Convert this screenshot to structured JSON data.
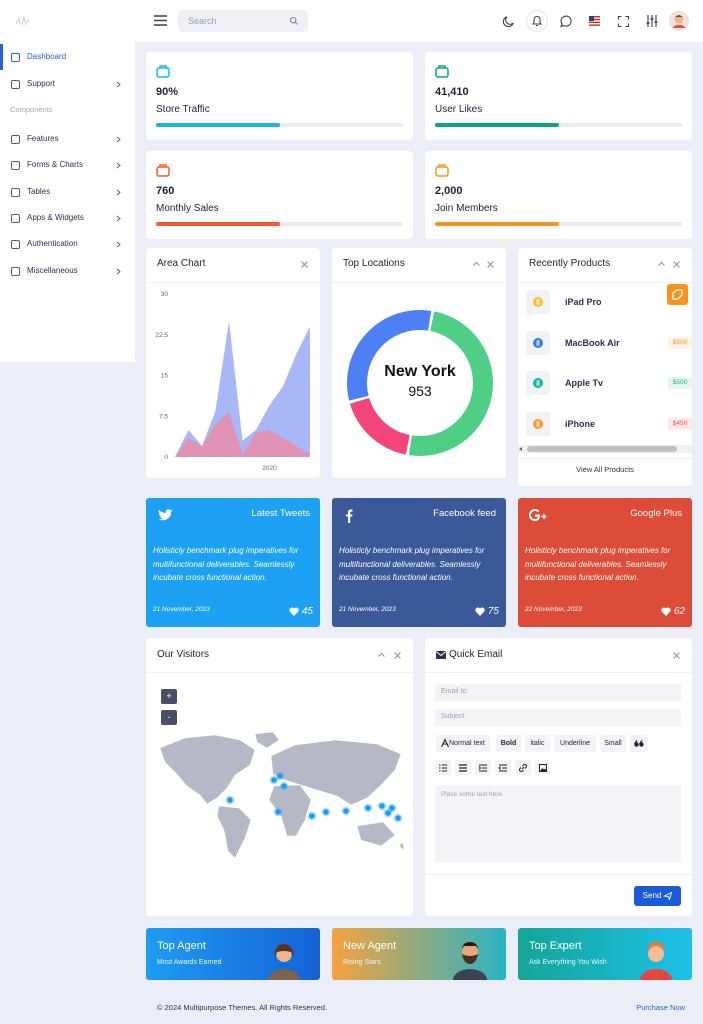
{
  "header": {
    "search_placeholder": "Search"
  },
  "sidebar": {
    "items": [
      "Dashboard",
      "Support"
    ],
    "section": "Components",
    "components": [
      "Features",
      "Forms & Charts",
      "Tables",
      "Apps & Widgets",
      "Authentication",
      "Miscellaneous"
    ]
  },
  "stats": [
    {
      "value": "90%",
      "label": "Store Traffic",
      "progress": 50,
      "color": "#1ab5f1"
    },
    {
      "value": "41,410",
      "label": "User Likes",
      "progress": 50,
      "color": "#0ba47f"
    },
    {
      "value": "760",
      "label": "Monthly Sales",
      "progress": 50,
      "color": "#f35b2f"
    },
    {
      "value": "2,000",
      "label": "Join Members",
      "progress": 50,
      "color": "#f8931f"
    }
  ],
  "area_chart": {
    "type": "area",
    "title": "Area Chart",
    "categories": [
      null,
      null,
      null,
      null,
      null,
      null,
      null,
      "2020",
      null,
      null,
      null
    ],
    "ylim": [
      0,
      30
    ],
    "yticks": [
      0,
      7.5,
      15,
      22.5,
      30
    ],
    "series": [
      {
        "color": "#9eaff4",
        "values": [
          0,
          5,
          2,
          8.5,
          25,
          3,
          5,
          9.5,
          13,
          19,
          24
        ]
      },
      {
        "color": "#e58eae",
        "values": [
          0,
          3.5,
          2,
          6,
          8.3,
          0.5,
          4.5,
          5,
          3.5,
          2,
          0.5
        ]
      }
    ]
  },
  "donut": {
    "type": "pie",
    "title": "Top Locations",
    "center_label": "New York",
    "center_value": 953,
    "values": [
      50,
      18,
      32
    ],
    "colors": [
      "#4fcf86",
      "#f2467b",
      "#4d7ff5"
    ]
  },
  "products": {
    "title": "Recently Products",
    "items": [
      {
        "name": "iPad Pro"
      },
      {
        "name": "MacBook Air",
        "price": "$500"
      },
      {
        "name": "Apple Tv",
        "price": "$500"
      },
      {
        "name": "iPhone",
        "price": "$450"
      }
    ],
    "link": "View All Products"
  },
  "social": [
    {
      "title": "Latest Tweets",
      "text": "Holisticly benchmark plug imperatives for multifunctional deliverables. Seamlessly incubate cross functional action.",
      "date": "21 November, 2023",
      "likes": 45,
      "color": "#1da1f2"
    },
    {
      "title": "Facebook feed",
      "text": "Holisticly benchmark plug imperatives for multifunctional deliverables. Seamlessly incubate cross functional action.",
      "date": "21 November, 2023",
      "likes": 75,
      "color": "#3b5998"
    },
    {
      "title": "Google Plus",
      "text": "Holisticly benchmark plug imperatives for multifunctional deliverables. Seamlessly incubate cross functional action.",
      "date": "22 November, 2023",
      "likes": 62,
      "color": "#dd4b39"
    }
  ],
  "visitors": {
    "title": "Our Visitors",
    "zoom_in": "+",
    "zoom_out": "-"
  },
  "email": {
    "title": "Quick Email",
    "to_placeholder": "Email to:",
    "subject_placeholder": "Subject",
    "toolbar": [
      "Normal text",
      "Bold",
      "italic",
      "Underline",
      "Small"
    ],
    "body_placeholder": "Place some text here",
    "send": "Send"
  },
  "agents": [
    {
      "title": "Top Agent",
      "subtitle": "Most Awards Earned"
    },
    {
      "title": "New Agent",
      "subtitle": "Rising Stars"
    },
    {
      "title": "Top Expert",
      "subtitle": "Ask Everything You Wish"
    }
  ],
  "footer": {
    "copyright": "© 2024 Multipurpose Themes. All Rights Reserved.",
    "link": "Purchase Now"
  }
}
